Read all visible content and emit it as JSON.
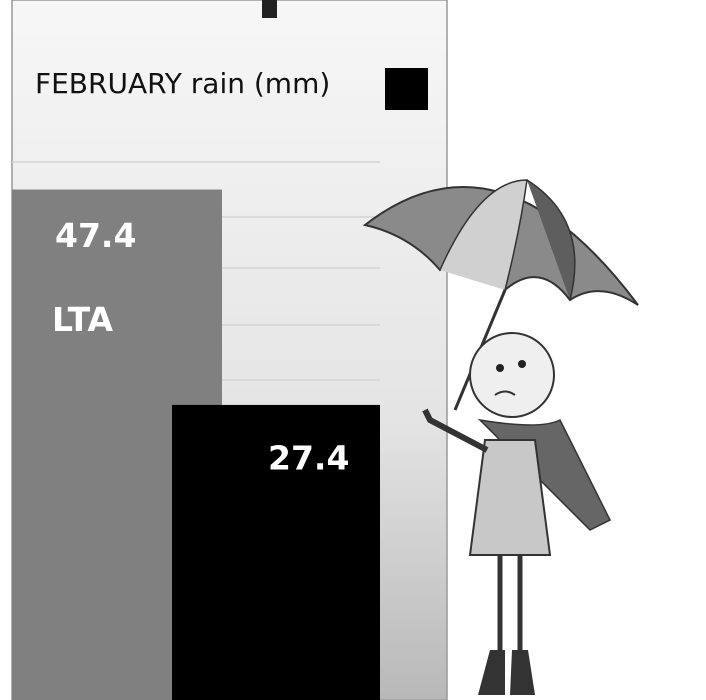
{
  "chart_data": {
    "type": "bar",
    "categories": [
      "LTA",
      null
    ],
    "values": [
      47.4,
      27.4
    ],
    "colors": [
      "#808080",
      "#000000"
    ],
    "ylim": [
      0,
      65
    ],
    "legend": {
      "name": "FEBRUARY rain (mm)",
      "color": "#000000"
    }
  }
}
